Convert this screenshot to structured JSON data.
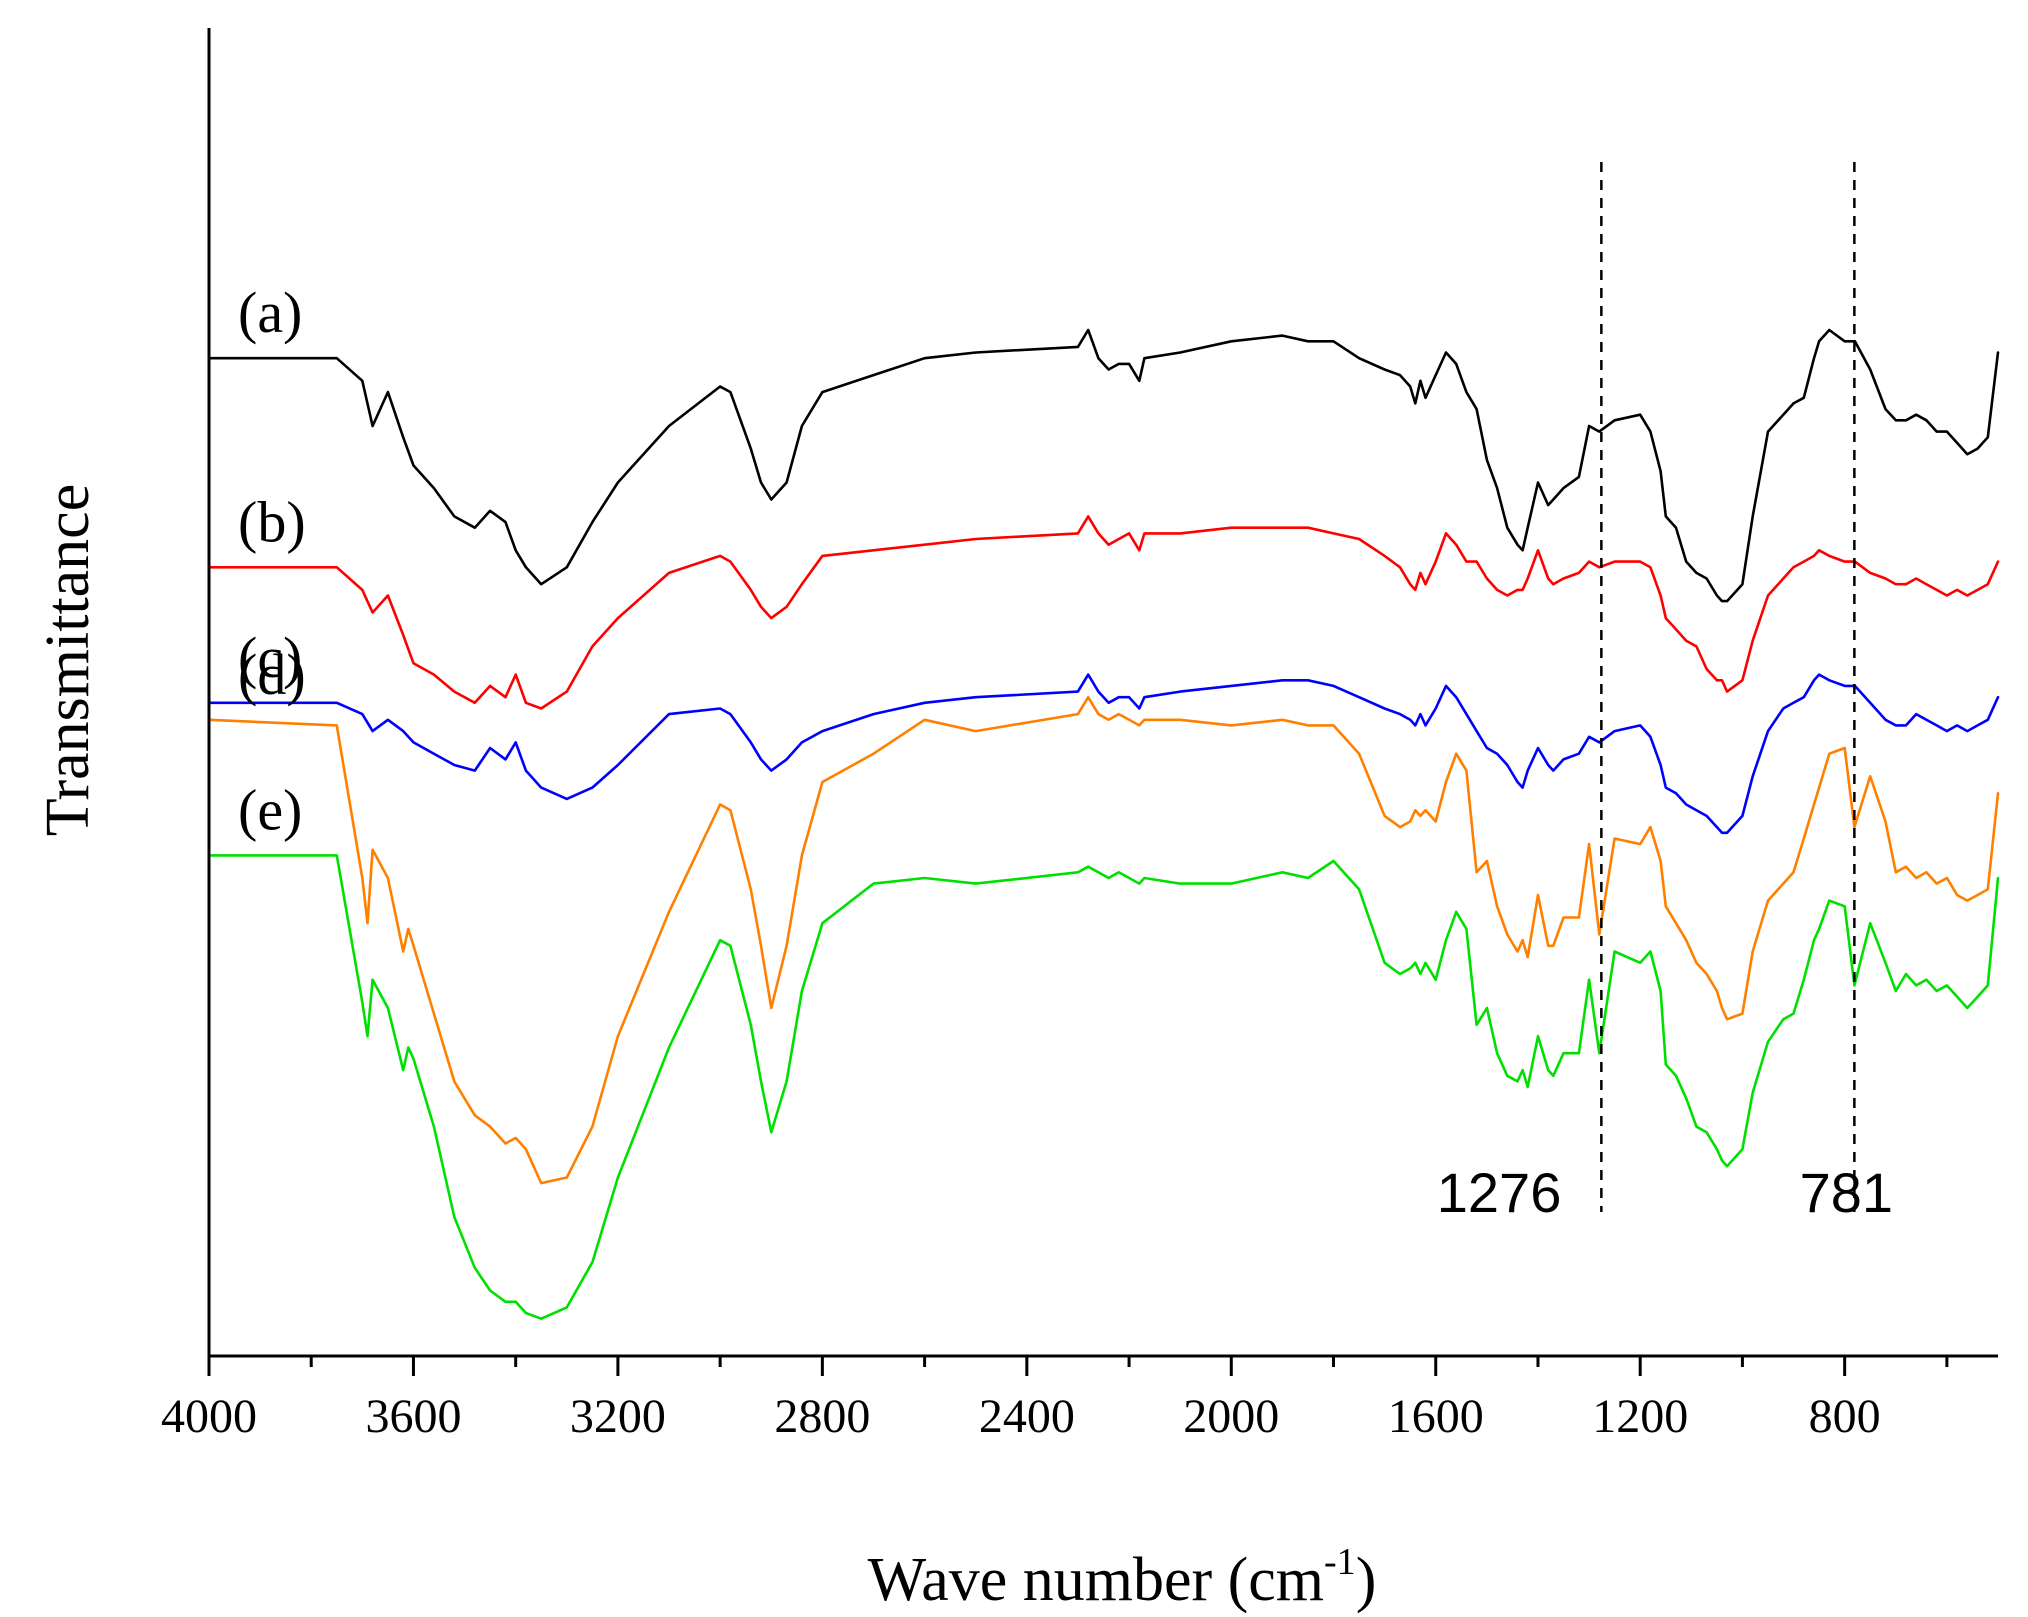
{
  "chart_data": {
    "type": "line",
    "title": "",
    "xlabel": "Wave number (cm",
    "xlabel_sup": "-1",
    "xlabel_tail": ")",
    "ylabel": "Transmittance",
    "xlim": [
      4000,
      500
    ],
    "ylim": [
      0,
      100
    ],
    "x_ticks": [
      4000,
      3600,
      3200,
      2800,
      2400,
      2000,
      1600,
      1200,
      800
    ],
    "x_tick_labels": [
      "4000",
      "3600",
      "3200",
      "2800",
      "2400",
      "2000",
      "1600",
      "1200",
      "800"
    ],
    "x_minor_ticks": [
      3800,
      3400,
      3000,
      2600,
      2200,
      1800,
      1400,
      1000,
      600
    ],
    "y_ticks_shown": false,
    "grid": false,
    "annotations": [
      {
        "x": 1276,
        "label": "1276",
        "style": "dashed-vertical",
        "label_side": "left"
      },
      {
        "x": 781,
        "label": "781",
        "style": "dashed-vertical",
        "label_side": "center"
      }
    ],
    "series": [
      {
        "name": "(a)",
        "color": "#000000",
        "x": [
          4000,
          3750,
          3700,
          3680,
          3650,
          3620,
          3600,
          3560,
          3520,
          3480,
          3450,
          3420,
          3400,
          3380,
          3350,
          3300,
          3250,
          3200,
          3100,
          3000,
          2980,
          2940,
          2920,
          2900,
          2870,
          2840,
          2800,
          2700,
          2600,
          2500,
          2300,
          2280,
          2260,
          2240,
          2220,
          2200,
          2180,
          2170,
          2100,
          2000,
          1900,
          1850,
          1800,
          1750,
          1700,
          1670,
          1650,
          1640,
          1630,
          1620,
          1600,
          1580,
          1560,
          1540,
          1520,
          1500,
          1480,
          1460,
          1440,
          1430,
          1420,
          1400,
          1380,
          1370,
          1350,
          1320,
          1300,
          1280,
          1250,
          1200,
          1180,
          1160,
          1150,
          1130,
          1110,
          1090,
          1070,
          1050,
          1040,
          1030,
          1000,
          980,
          950,
          920,
          900,
          880,
          860,
          850,
          830,
          800,
          780,
          750,
          720,
          700,
          680,
          660,
          640,
          620,
          600,
          580,
          560,
          540,
          520,
          500
        ],
        "y": [
          86.0,
          86.0,
          84.0,
          80.0,
          83.0,
          79.0,
          76.5,
          74.5,
          72.0,
          71.0,
          72.5,
          71.5,
          69.0,
          67.5,
          66.0,
          67.5,
          71.5,
          75.0,
          80.0,
          83.5,
          83.0,
          78.0,
          75.0,
          73.5,
          75.0,
          80.0,
          83.0,
          84.5,
          86.0,
          86.5,
          87.0,
          88.5,
          86.0,
          85.0,
          85.5,
          85.5,
          84.0,
          86.0,
          86.5,
          87.5,
          88.0,
          87.5,
          87.5,
          86.0,
          85.0,
          84.5,
          83.5,
          82.0,
          84.0,
          82.5,
          84.5,
          86.5,
          85.5,
          83.0,
          81.5,
          77.0,
          74.5,
          71.0,
          69.5,
          69.0,
          71.0,
          75.0,
          73.0,
          73.5,
          74.5,
          75.5,
          80.0,
          79.5,
          80.5,
          81.0,
          79.5,
          76.0,
          72.0,
          71.0,
          68.0,
          67.0,
          66.5,
          65.0,
          64.5,
          64.5,
          66.0,
          72.0,
          79.5,
          81.0,
          82.0,
          82.5,
          86.0,
          87.5,
          88.5,
          87.5,
          87.5,
          85.0,
          81.5,
          80.5,
          80.5,
          81.0,
          80.5,
          79.5,
          79.5,
          78.5,
          77.5,
          78.0,
          79.0,
          86.5
        ]
      },
      {
        "name": "(b)",
        "color": "#ff0000",
        "x": [
          4000,
          3750,
          3700,
          3680,
          3650,
          3620,
          3600,
          3560,
          3520,
          3480,
          3450,
          3420,
          3400,
          3380,
          3350,
          3300,
          3250,
          3200,
          3100,
          3000,
          2980,
          2940,
          2920,
          2900,
          2870,
          2840,
          2800,
          2700,
          2600,
          2500,
          2300,
          2280,
          2260,
          2240,
          2220,
          2200,
          2180,
          2170,
          2100,
          2000,
          1900,
          1850,
          1800,
          1750,
          1700,
          1670,
          1650,
          1640,
          1630,
          1620,
          1600,
          1580,
          1560,
          1540,
          1520,
          1500,
          1480,
          1460,
          1440,
          1430,
          1420,
          1400,
          1380,
          1370,
          1350,
          1320,
          1300,
          1280,
          1250,
          1200,
          1180,
          1160,
          1150,
          1130,
          1110,
          1090,
          1070,
          1050,
          1040,
          1030,
          1000,
          980,
          950,
          920,
          900,
          880,
          860,
          850,
          830,
          800,
          780,
          750,
          720,
          700,
          680,
          660,
          640,
          620,
          600,
          580,
          560,
          540,
          520,
          500
        ],
        "y": [
          67.5,
          67.5,
          65.5,
          63.5,
          65.0,
          61.5,
          59.0,
          58.0,
          56.5,
          55.5,
          57.0,
          56.0,
          58.0,
          55.5,
          55.0,
          56.5,
          60.5,
          63.0,
          67.0,
          68.5,
          68.0,
          65.5,
          64.0,
          63.0,
          64.0,
          66.0,
          68.5,
          69.0,
          69.5,
          70.0,
          70.5,
          72.0,
          70.5,
          69.5,
          70.0,
          70.5,
          69.0,
          70.5,
          70.5,
          71.0,
          71.0,
          71.0,
          70.5,
          70.0,
          68.5,
          67.5,
          66.0,
          65.5,
          67.0,
          66.0,
          68.0,
          70.5,
          69.5,
          68.0,
          68.0,
          66.5,
          65.5,
          65.0,
          65.5,
          65.5,
          66.5,
          69.0,
          66.5,
          66.0,
          66.5,
          67.0,
          68.0,
          67.5,
          68.0,
          68.0,
          67.5,
          65.0,
          63.0,
          62.0,
          61.0,
          60.5,
          58.5,
          57.5,
          57.5,
          56.5,
          57.5,
          61.0,
          65.0,
          66.5,
          67.5,
          68.0,
          68.5,
          69.0,
          68.5,
          68.0,
          68.0,
          67.0,
          66.5,
          66.0,
          66.0,
          66.5,
          66.0,
          65.5,
          65.0,
          65.5,
          65.0,
          65.5,
          66.0,
          68.0
        ]
      },
      {
        "name": "(c)",
        "color": "#0000ff",
        "x": [
          4000,
          3750,
          3700,
          3680,
          3650,
          3620,
          3600,
          3560,
          3520,
          3480,
          3450,
          3420,
          3400,
          3380,
          3350,
          3300,
          3250,
          3200,
          3100,
          3000,
          2980,
          2940,
          2920,
          2900,
          2870,
          2840,
          2800,
          2700,
          2600,
          2500,
          2300,
          2280,
          2260,
          2240,
          2220,
          2200,
          2180,
          2170,
          2100,
          2000,
          1900,
          1850,
          1800,
          1750,
          1700,
          1670,
          1650,
          1640,
          1630,
          1620,
          1600,
          1580,
          1560,
          1540,
          1520,
          1500,
          1480,
          1460,
          1440,
          1430,
          1420,
          1400,
          1380,
          1370,
          1350,
          1320,
          1300,
          1280,
          1250,
          1200,
          1180,
          1160,
          1150,
          1130,
          1110,
          1090,
          1070,
          1050,
          1040,
          1030,
          1000,
          980,
          950,
          920,
          900,
          880,
          860,
          850,
          830,
          800,
          780,
          750,
          720,
          700,
          680,
          660,
          640,
          620,
          600,
          580,
          560,
          540,
          520,
          500
        ],
        "y": [
          55.5,
          55.5,
          54.5,
          53.0,
          54.0,
          53.0,
          52.0,
          51.0,
          50.0,
          49.5,
          51.5,
          50.5,
          52.0,
          49.5,
          48.0,
          47.0,
          48.0,
          50.0,
          54.5,
          55.0,
          54.5,
          52.0,
          50.5,
          49.5,
          50.5,
          52.0,
          53.0,
          54.5,
          55.5,
          56.0,
          56.5,
          58.0,
          56.5,
          55.5,
          56.0,
          56.0,
          55.0,
          56.0,
          56.5,
          57.0,
          57.5,
          57.5,
          57.0,
          56.0,
          55.0,
          54.5,
          54.0,
          53.5,
          54.5,
          53.5,
          55.0,
          57.0,
          56.0,
          54.5,
          53.0,
          51.5,
          51.0,
          50.0,
          48.5,
          48.0,
          49.5,
          51.5,
          50.0,
          49.5,
          50.5,
          51.0,
          52.5,
          52.0,
          53.0,
          53.5,
          52.5,
          50.0,
          48.0,
          47.5,
          46.5,
          46.0,
          45.5,
          44.5,
          44.0,
          44.0,
          45.5,
          49.0,
          53.0,
          55.0,
          55.5,
          56.0,
          57.5,
          58.0,
          57.5,
          57.0,
          57.0,
          55.5,
          54.0,
          53.5,
          53.5,
          54.5,
          54.0,
          53.5,
          53.0,
          53.5,
          53.0,
          53.5,
          54.0,
          56.0
        ]
      },
      {
        "name": "(d)",
        "color": "#ff8000",
        "x": [
          4000,
          3750,
          3700,
          3690,
          3680,
          3650,
          3620,
          3610,
          3600,
          3560,
          3520,
          3480,
          3450,
          3420,
          3400,
          3380,
          3350,
          3300,
          3250,
          3200,
          3100,
          3000,
          2980,
          2940,
          2920,
          2900,
          2870,
          2840,
          2800,
          2700,
          2600,
          2500,
          2300,
          2280,
          2260,
          2240,
          2220,
          2200,
          2180,
          2170,
          2100,
          2000,
          1900,
          1850,
          1800,
          1750,
          1700,
          1670,
          1650,
          1640,
          1630,
          1620,
          1600,
          1580,
          1560,
          1540,
          1520,
          1500,
          1480,
          1460,
          1440,
          1430,
          1420,
          1400,
          1380,
          1370,
          1350,
          1320,
          1300,
          1280,
          1250,
          1200,
          1180,
          1160,
          1150,
          1130,
          1110,
          1090,
          1070,
          1050,
          1040,
          1030,
          1000,
          980,
          950,
          920,
          900,
          880,
          860,
          850,
          830,
          800,
          781,
          750,
          720,
          700,
          680,
          660,
          640,
          620,
          600,
          580,
          560,
          540,
          520,
          500
        ],
        "y": [
          54.0,
          53.5,
          40.0,
          36.0,
          42.5,
          40.0,
          33.5,
          35.5,
          34.0,
          28.0,
          22.0,
          19.0,
          18.0,
          16.5,
          17.0,
          16.0,
          13.0,
          13.5,
          18.0,
          26.0,
          37.0,
          46.5,
          46.0,
          39.0,
          34.0,
          28.5,
          34.0,
          42.0,
          48.5,
          51.0,
          54.0,
          53.0,
          54.5,
          56.0,
          54.5,
          54.0,
          54.5,
          54.0,
          53.5,
          54.0,
          54.0,
          53.5,
          54.0,
          53.5,
          53.5,
          51.0,
          45.5,
          44.5,
          45.0,
          46.0,
          45.5,
          46.0,
          45.0,
          48.5,
          51.0,
          49.5,
          40.5,
          41.5,
          37.5,
          35.0,
          33.5,
          34.5,
          33.0,
          38.5,
          34.0,
          34.0,
          36.5,
          36.5,
          43.0,
          35.0,
          43.5,
          43.0,
          44.5,
          41.5,
          37.5,
          36.0,
          34.5,
          32.5,
          31.5,
          30.0,
          28.5,
          27.5,
          28.0,
          33.5,
          38.0,
          39.5,
          40.5,
          43.5,
          46.5,
          48.0,
          51.0,
          51.5,
          44.5,
          49.0,
          45.0,
          40.5,
          41.0,
          40.0,
          40.5,
          39.5,
          40.0,
          38.5,
          38.0,
          38.5,
          39.0,
          47.5
        ]
      },
      {
        "name": "(e)",
        "color": "#00e000",
        "x": [
          4000,
          3750,
          3700,
          3690,
          3680,
          3650,
          3620,
          3610,
          3600,
          3560,
          3520,
          3480,
          3450,
          3420,
          3400,
          3380,
          3350,
          3300,
          3250,
          3200,
          3100,
          3000,
          2980,
          2940,
          2920,
          2900,
          2870,
          2840,
          2800,
          2700,
          2600,
          2500,
          2300,
          2280,
          2260,
          2240,
          2220,
          2200,
          2180,
          2170,
          2100,
          2000,
          1900,
          1850,
          1800,
          1750,
          1700,
          1670,
          1650,
          1640,
          1630,
          1620,
          1600,
          1580,
          1560,
          1540,
          1520,
          1500,
          1480,
          1460,
          1440,
          1430,
          1420,
          1400,
          1380,
          1370,
          1350,
          1320,
          1300,
          1280,
          1250,
          1200,
          1180,
          1160,
          1150,
          1130,
          1110,
          1090,
          1070,
          1050,
          1040,
          1030,
          1000,
          980,
          950,
          920,
          900,
          880,
          860,
          850,
          830,
          800,
          781,
          750,
          720,
          700,
          680,
          660,
          640,
          620,
          600,
          580,
          560,
          540,
          520,
          500
        ],
        "y": [
          42.0,
          42.0,
          29.0,
          26.0,
          31.0,
          28.5,
          23.0,
          25.0,
          24.0,
          18.0,
          10.0,
          5.5,
          3.5,
          2.5,
          2.5,
          1.5,
          1.0,
          2.0,
          6.0,
          13.5,
          25.0,
          34.5,
          34.0,
          27.0,
          22.0,
          17.5,
          22.0,
          30.0,
          36.0,
          39.5,
          40.0,
          39.5,
          40.5,
          41.0,
          40.5,
          40.0,
          40.5,
          40.0,
          39.5,
          40.0,
          39.5,
          39.5,
          40.5,
          40.0,
          41.5,
          39.0,
          32.5,
          31.5,
          32.0,
          32.5,
          31.5,
          32.5,
          31.0,
          34.5,
          37.0,
          35.5,
          27.0,
          28.5,
          24.5,
          22.5,
          22.0,
          23.0,
          21.5,
          26.0,
          23.0,
          22.5,
          24.5,
          24.5,
          31.0,
          24.5,
          33.5,
          32.5,
          33.5,
          30.0,
          23.5,
          22.5,
          20.5,
          18.0,
          17.5,
          16.0,
          15.0,
          14.5,
          16.0,
          21.0,
          25.5,
          27.5,
          28.0,
          31.0,
          34.5,
          35.5,
          38.0,
          37.5,
          30.5,
          36.0,
          32.5,
          30.0,
          31.5,
          30.5,
          31.0,
          30.0,
          30.5,
          29.5,
          28.5,
          29.5,
          30.5,
          40.0
        ]
      }
    ]
  }
}
